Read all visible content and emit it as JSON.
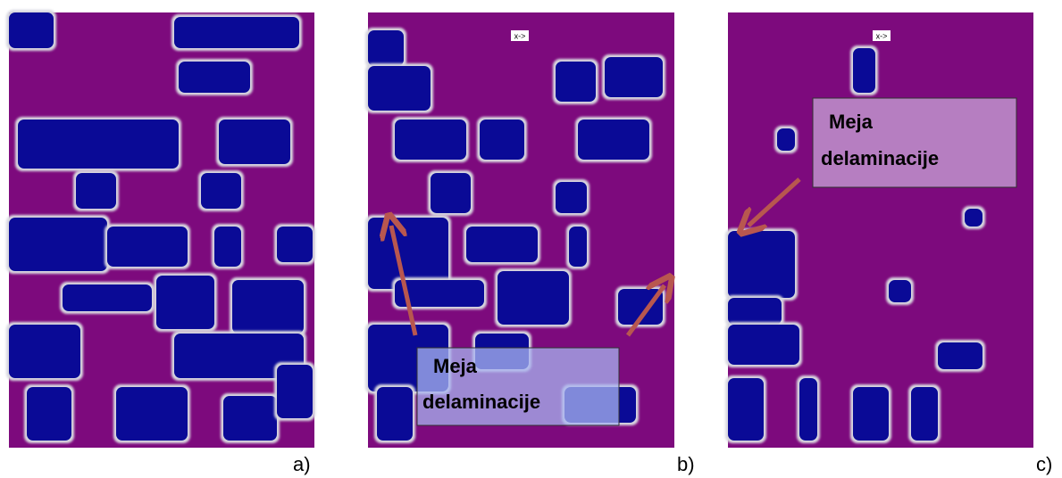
{
  "panels": [
    {
      "label": "a)"
    },
    {
      "label": "b)",
      "axis_marker": "x->",
      "callout": {
        "lines": [
          "Meja",
          "delaminacije"
        ]
      }
    },
    {
      "label": "c)",
      "axis_marker": "x->",
      "callout": {
        "lines": [
          "Meja",
          "delaminacije"
        ]
      }
    }
  ]
}
